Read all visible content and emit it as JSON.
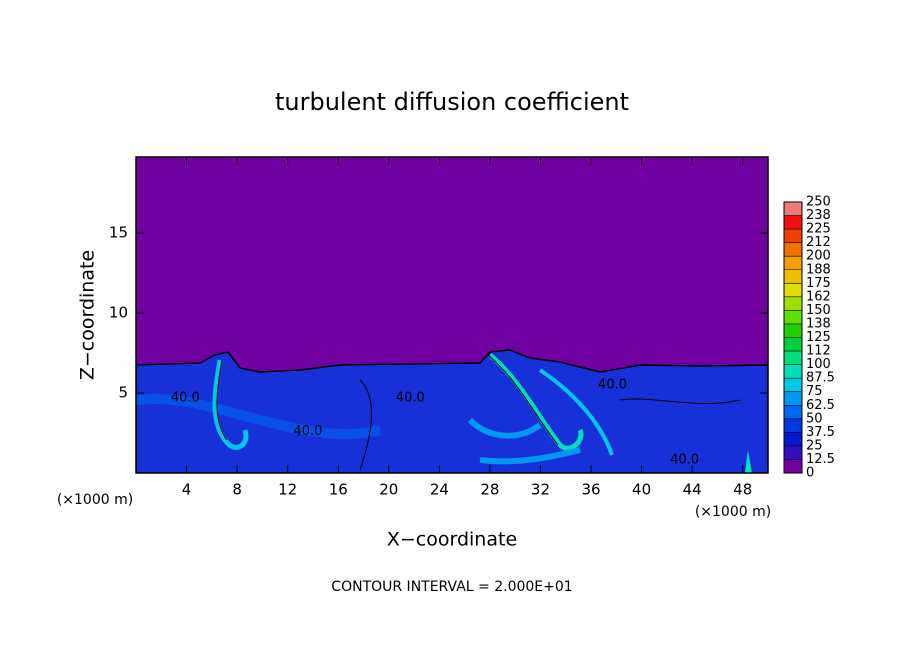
{
  "chart_data": {
    "type": "contour",
    "title": "turbulent diffusion coefficient",
    "x_label": "X−coordinate",
    "y_label": "Z−coordinate",
    "x_unit_label": "(×1000 m)",
    "y_unit_label": "(×1000 m)",
    "footnote": "CONTOUR INTERVAL = 2.000E+01",
    "xlim": [
      0,
      50
    ],
    "xticks": [
      4,
      8,
      12,
      16,
      20,
      24,
      28,
      32,
      36,
      40,
      44,
      48
    ],
    "ylim": [
      0,
      19.75
    ],
    "yticks": [
      5,
      10,
      15
    ],
    "levels": [
      0,
      12.5,
      25,
      37.5,
      50,
      62.5,
      75,
      87.5,
      100,
      {
        "value": 112.5,
        "label": "112"
      },
      125,
      {
        "value": 137.5,
        "label": "138"
      },
      150,
      {
        "value": 162.5,
        "label": "162"
      },
      175,
      {
        "value": 187.5,
        "label": "188"
      },
      200,
      {
        "value": 212.5,
        "label": "212"
      },
      225,
      {
        "value": 237.5,
        "label": "238"
      },
      250
    ],
    "level_colors": [
      "#7000a0",
      "#3010c0",
      "#0818d0",
      "#0038e0",
      "#0068f0",
      "#0098f0",
      "#00c8e8",
      "#00e0b8",
      "#00e080",
      "#00d040",
      "#20d000",
      "#60e000",
      "#a0e000",
      "#e0e000",
      "#f0c000",
      "#f0a000",
      "#f07000",
      "#f04000",
      "#f01010",
      "#f07878"
    ],
    "contour_labels": [
      {
        "x": 3.9,
        "z": 4.7,
        "value": 40,
        "label": "40.0"
      },
      {
        "x": 21.7,
        "z": 4.7,
        "value": 40,
        "label": "40.0"
      },
      {
        "x": 13.6,
        "z": 2.6,
        "value": 40,
        "label": "40.0"
      },
      {
        "x": 37.7,
        "z": 5.5,
        "value": 40,
        "label": "40.0"
      },
      {
        "x": 43.4,
        "z": 0.8,
        "value": 40,
        "label": "40.0"
      }
    ]
  }
}
